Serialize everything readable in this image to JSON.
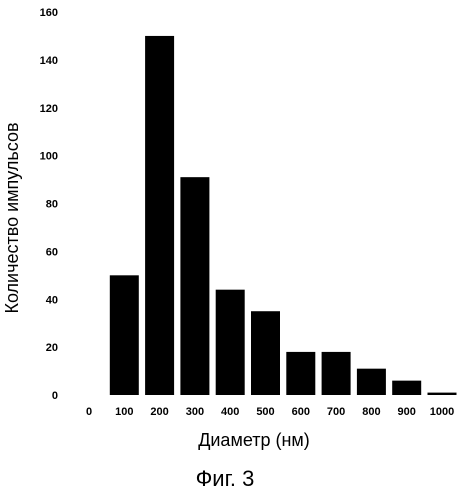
{
  "chart_data": {
    "type": "bar",
    "categories": [
      "100",
      "200",
      "300",
      "400",
      "500",
      "600",
      "700",
      "800",
      "900",
      "1000"
    ],
    "values": [
      50,
      150,
      91,
      44,
      35,
      18,
      18,
      11,
      6,
      1
    ],
    "x_ticks": [
      "0",
      "100",
      "200",
      "300",
      "400",
      "500",
      "600",
      "700",
      "800",
      "900",
      "1000"
    ],
    "y_ticks": [
      "0",
      "20",
      "40",
      "60",
      "80",
      "100",
      "120",
      "140",
      "160"
    ],
    "ylim": [
      0,
      160
    ],
    "title": "",
    "xlabel": "Диаметр (нм)",
    "ylabel": "Количество импульсов",
    "grid": false,
    "bar_color": "#000000"
  },
  "caption": "Фиг. 3"
}
